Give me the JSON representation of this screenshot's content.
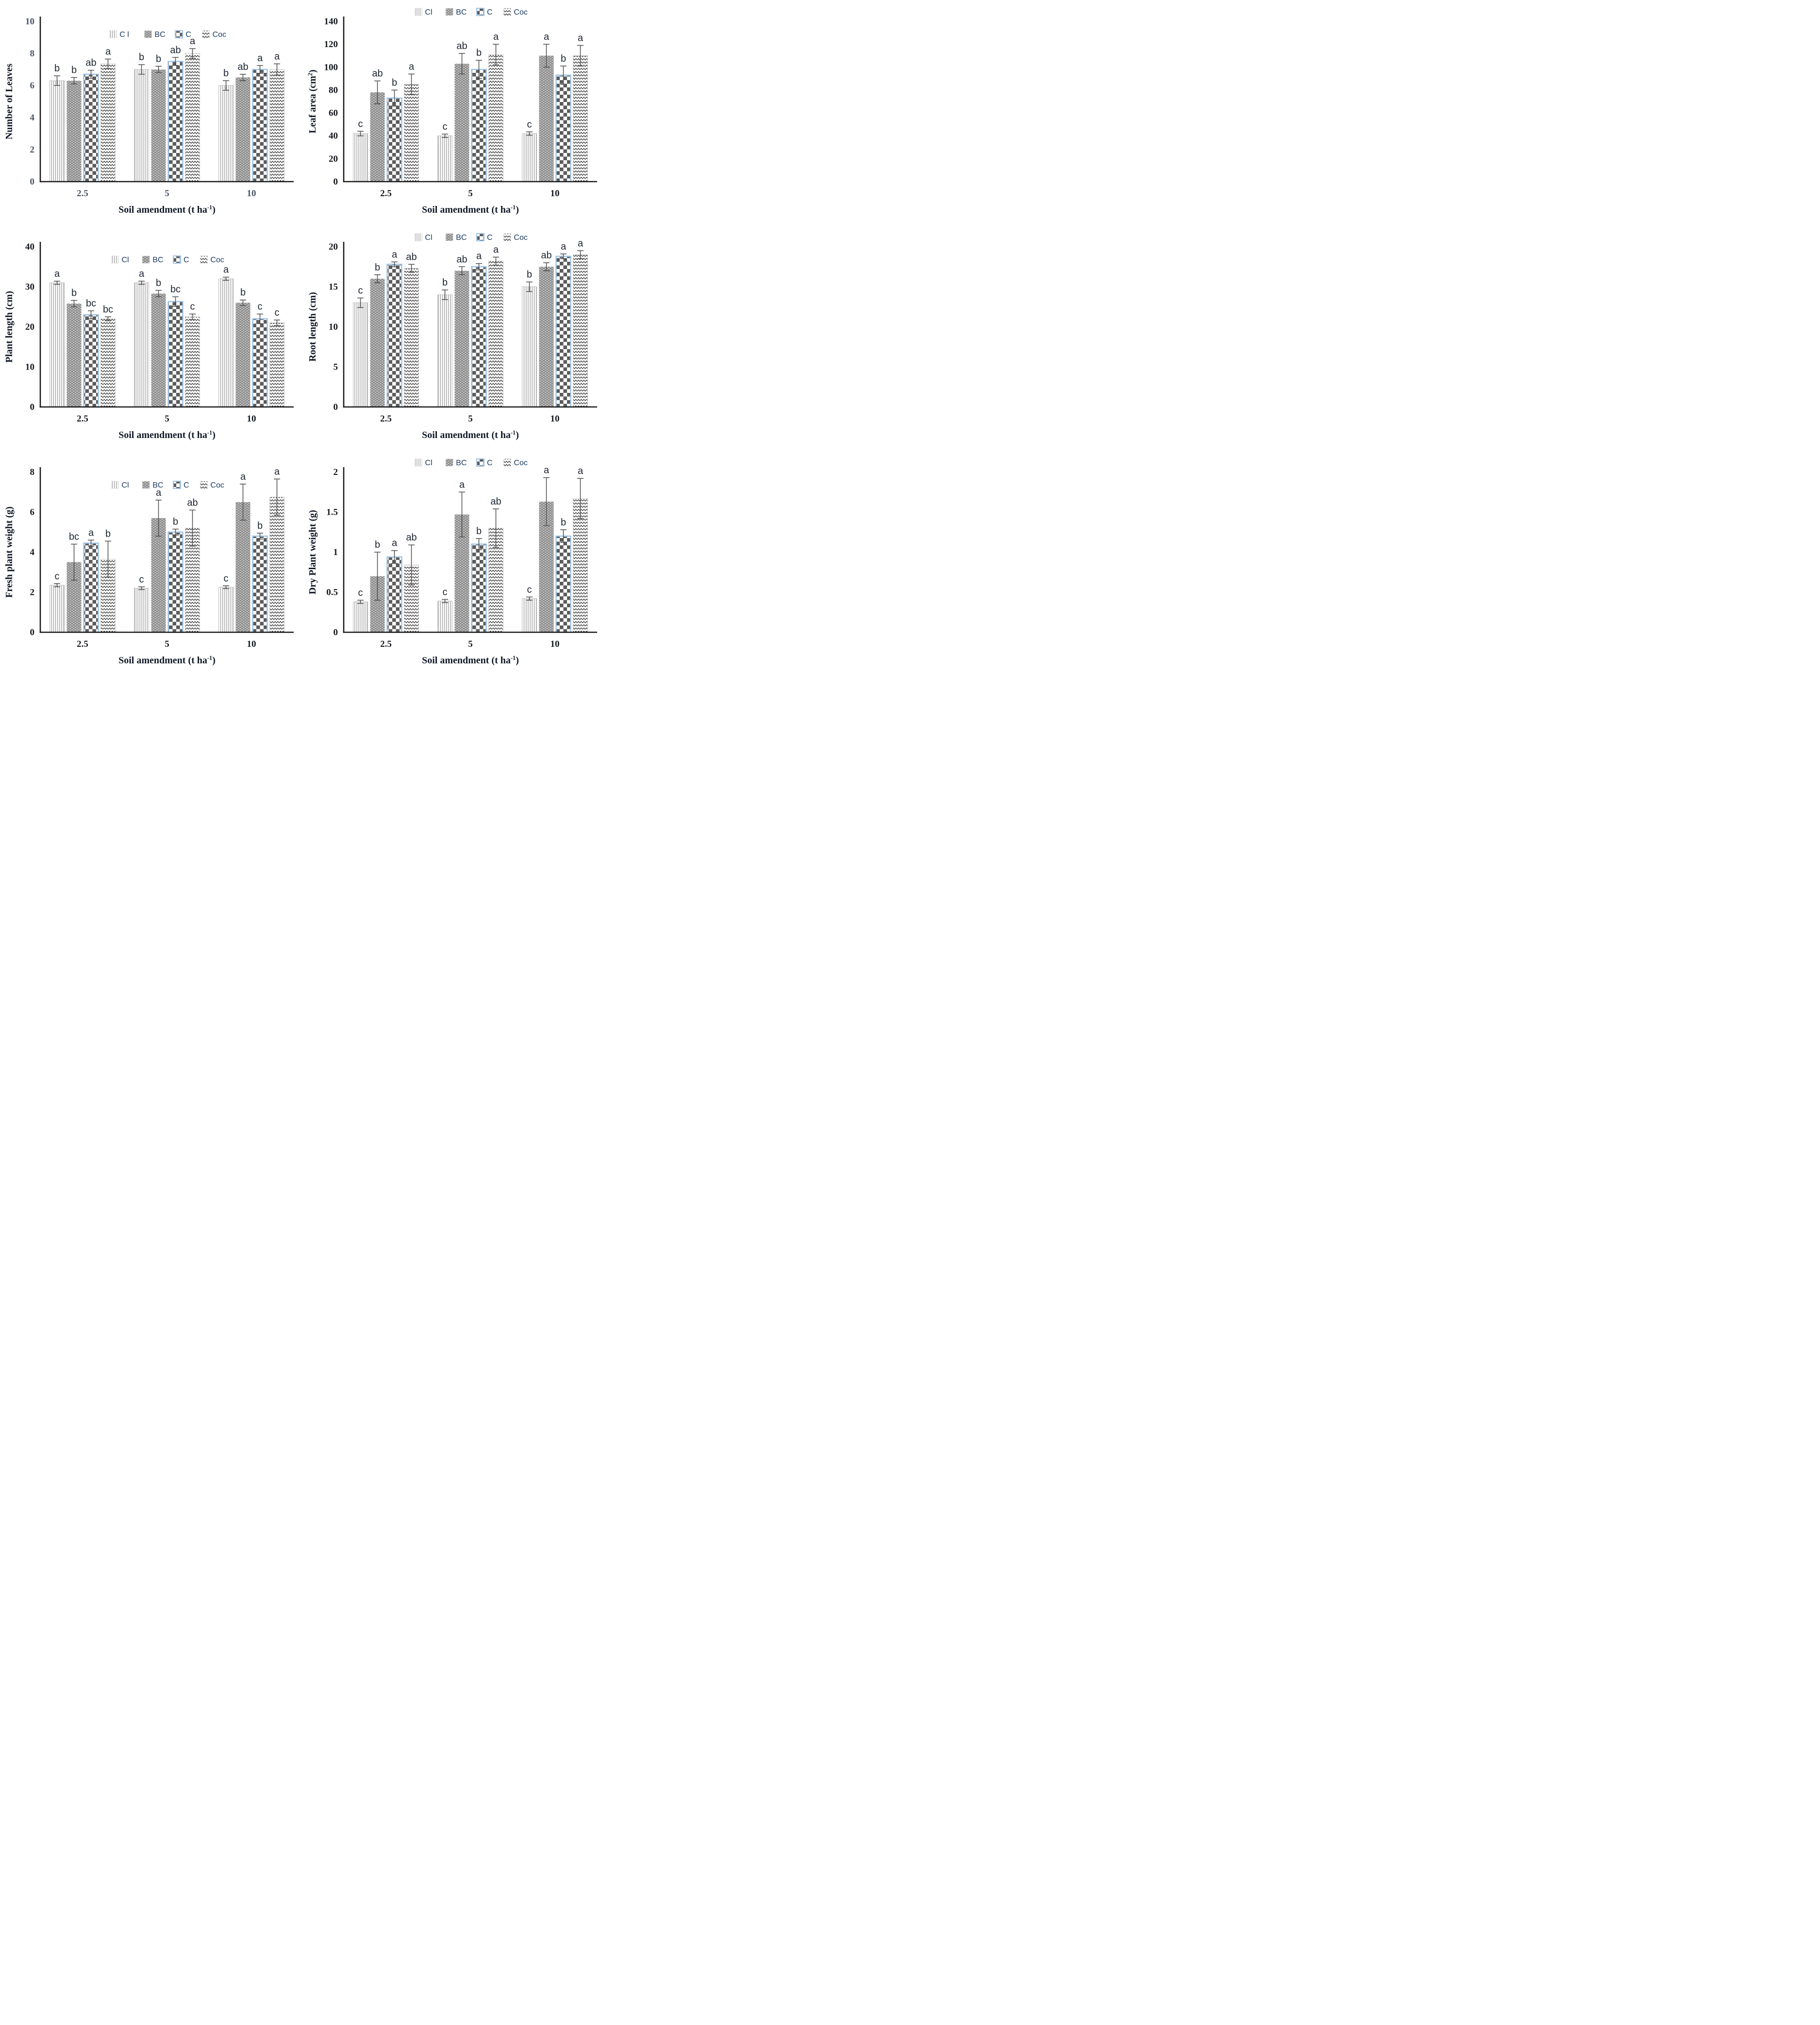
{
  "figure": {
    "description": "Six-panel grouped bar chart figure of plant growth responses to soil amendments",
    "rows": 3,
    "cols": 2,
    "background": "#ffffff"
  },
  "colors": {
    "axis": "#1a1a1a",
    "axis_label_text": "#101826",
    "letter_text": "#1c2430",
    "legend_text": "#17375e",
    "error_bar": "#4d4d4d",
    "stripe_gray": "#a8a8a8",
    "bar_gray": "#8f8f8f",
    "checker_dark": "#5b5b5b",
    "checker_border": "#9dc3e6",
    "zigzag_dark": "#141414",
    "tick_blue": "#4a5568",
    "tick_black": "#14181f"
  },
  "patterns": {
    "vlines": "vertical-lines-swatch",
    "bc": "dotted-grid-swatch",
    "checker": "checkerboard-swatch",
    "zigzag": "zigzag-waves-swatch"
  },
  "chart_data": [
    {
      "type": "bar",
      "name": "number-of-leaves",
      "ylabel": {
        "pre": "Number of Leaves",
        "sup": "",
        "post": ""
      },
      "xlabel": {
        "pre": "Soil amendment (t ha",
        "sup": "-1",
        "post": ")"
      },
      "ylim": [
        0,
        10
      ],
      "yticks": [
        0,
        2,
        4,
        6,
        8,
        10
      ],
      "categories": [
        "2.5",
        "5",
        "10"
      ],
      "legend_pos": "inside",
      "tick_color": "#4a5568",
      "series": [
        {
          "name": "Cl",
          "legend_label": "C l",
          "pattern": "vlines",
          "values": [
            6.3,
            7.0,
            6.0
          ],
          "errors": [
            0.3,
            0.3,
            0.3
          ],
          "letters": [
            "b",
            "b",
            "b"
          ]
        },
        {
          "name": "BC",
          "legend_label": "BC",
          "pattern": "bc",
          "values": [
            6.3,
            7.0,
            6.5
          ],
          "errors": [
            0.2,
            0.2,
            0.2
          ],
          "letters": [
            "b",
            "b",
            "ab"
          ]
        },
        {
          "name": "C",
          "legend_label": "C",
          "pattern": "checker",
          "values": [
            6.7,
            7.5,
            7.0
          ],
          "errors": [
            0.25,
            0.25,
            0.25
          ],
          "letters": [
            "ab",
            "ab",
            "a"
          ]
        },
        {
          "name": "Coc",
          "legend_label": "Coc",
          "pattern": "zigzag",
          "values": [
            7.35,
            8.0,
            7.0
          ],
          "errors": [
            0.3,
            0.3,
            0.35
          ],
          "letters": [
            "a",
            "a",
            "a"
          ]
        }
      ]
    },
    {
      "type": "bar",
      "name": "leaf-area",
      "ylabel": {
        "pre": "Leaf area (cm",
        "sup": "2",
        "post": ")"
      },
      "xlabel": {
        "pre": "Soil amendment (t ha",
        "sup": "-1",
        "post": ")"
      },
      "ylim": [
        0,
        140
      ],
      "yticks": [
        0,
        20,
        40,
        60,
        80,
        100,
        120,
        140
      ],
      "categories": [
        "2.5",
        "5",
        "10"
      ],
      "legend_pos": "outside",
      "tick_color": "#14181f",
      "series": [
        {
          "name": "Cl",
          "legend_label": "Cl",
          "pattern": "vlines",
          "values": [
            42,
            40,
            42
          ],
          "errors": [
            2,
            1.5,
            1.5
          ],
          "letters": [
            "c",
            "c",
            "c"
          ]
        },
        {
          "name": "BC",
          "legend_label": "BC",
          "pattern": "bc",
          "values": [
            78,
            103,
            110
          ],
          "errors": [
            10,
            9,
            10
          ],
          "letters": [
            "ab",
            "ab",
            "a"
          ]
        },
        {
          "name": "C",
          "legend_label": "C",
          "pattern": "checker",
          "values": [
            73,
            98,
            93
          ],
          "errors": [
            7,
            8,
            8
          ],
          "letters": [
            "b",
            "b",
            "b"
          ]
        },
        {
          "name": "Coc",
          "legend_label": "Coc",
          "pattern": "zigzag",
          "values": [
            85,
            111,
            110
          ],
          "errors": [
            9,
            9,
            9
          ],
          "letters": [
            "a",
            "a",
            "a"
          ]
        }
      ]
    },
    {
      "type": "bar",
      "name": "plant-length",
      "ylabel": {
        "pre": "Plant length (cm)",
        "sup": "",
        "post": ""
      },
      "xlabel": {
        "pre": "Soil amendment (t ha",
        "sup": "-1",
        "post": ")"
      },
      "ylim": [
        0,
        40
      ],
      "yticks": [
        0,
        10,
        20,
        30,
        40
      ],
      "categories": [
        "2.5",
        "5",
        "10"
      ],
      "legend_pos": "inside",
      "tick_color": "#14181f",
      "series": [
        {
          "name": "Cl",
          "legend_label": "Cl",
          "pattern": "vlines",
          "values": [
            31,
            31,
            32
          ],
          "errors": [
            0.4,
            0.4,
            0.4
          ],
          "letters": [
            "a",
            "a",
            "a"
          ]
        },
        {
          "name": "BC",
          "legend_label": "BC",
          "pattern": "bc",
          "values": [
            25.8,
            28.3,
            26
          ],
          "errors": [
            0.8,
            0.8,
            0.7
          ],
          "letters": [
            "b",
            "b",
            "b"
          ]
        },
        {
          "name": "C",
          "legend_label": "C",
          "pattern": "checker",
          "values": [
            23,
            26.3,
            22
          ],
          "errors": [
            1.0,
            1.2,
            1.2
          ],
          "letters": [
            "bc",
            "bc",
            "c"
          ]
        },
        {
          "name": "Coc",
          "legend_label": "Coc",
          "pattern": "zigzag",
          "values": [
            22,
            22.5,
            21
          ],
          "errors": [
            0.5,
            0.7,
            0.7
          ],
          "letters": [
            "bc",
            "c",
            "c"
          ]
        }
      ]
    },
    {
      "type": "bar",
      "name": "root-length",
      "ylabel": {
        "pre": "Root length (cm)",
        "sup": "",
        "post": ""
      },
      "xlabel": {
        "pre": "Soil amendment (t ha",
        "sup": "-1",
        "post": ")"
      },
      "ylim": [
        0,
        20
      ],
      "yticks": [
        0,
        5,
        10,
        15,
        20
      ],
      "categories": [
        "2.5",
        "5",
        "10"
      ],
      "legend_pos": "outside",
      "tick_color": "#14181f",
      "series": [
        {
          "name": "Cl",
          "legend_label": "Cl",
          "pattern": "vlines",
          "values": [
            13,
            14,
            15
          ],
          "errors": [
            0.6,
            0.6,
            0.6
          ],
          "letters": [
            "c",
            "b",
            "b"
          ]
        },
        {
          "name": "BC",
          "legend_label": "BC",
          "pattern": "bc",
          "values": [
            16,
            17,
            17.5
          ],
          "errors": [
            0.5,
            0.5,
            0.5
          ],
          "letters": [
            "b",
            "ab",
            "ab"
          ]
        },
        {
          "name": "C",
          "legend_label": "C",
          "pattern": "checker",
          "values": [
            17.8,
            17.5,
            18.8
          ],
          "errors": [
            0.3,
            0.4,
            0.3
          ],
          "letters": [
            "a",
            "a",
            "a"
          ]
        },
        {
          "name": "Coc",
          "legend_label": "Coc",
          "pattern": "zigzag",
          "values": [
            17.3,
            18.2,
            19
          ],
          "errors": [
            0.5,
            0.5,
            0.5
          ],
          "letters": [
            "ab",
            "a",
            "a"
          ]
        }
      ]
    },
    {
      "type": "bar",
      "name": "fresh-plant-weight",
      "ylabel": {
        "pre": "Fresh plant weight (g)",
        "sup": "",
        "post": ""
      },
      "xlabel": {
        "pre": "Soil amendment (t ha",
        "sup": "-1",
        "post": ")"
      },
      "ylim": [
        0,
        8
      ],
      "yticks": [
        0,
        2,
        4,
        6,
        8
      ],
      "categories": [
        "2.5",
        "5",
        "10"
      ],
      "legend_pos": "inside",
      "tick_color": "#14181f",
      "series": [
        {
          "name": "Cl",
          "legend_label": "Cl",
          "pattern": "vlines",
          "values": [
            2.35,
            2.2,
            2.25
          ],
          "errors": [
            0.08,
            0.07,
            0.07
          ],
          "letters": [
            "c",
            "c",
            "c"
          ]
        },
        {
          "name": "BC",
          "legend_label": "BC",
          "pattern": "bc",
          "values": [
            3.5,
            5.7,
            6.5
          ],
          "errors": [
            0.9,
            0.9,
            0.9
          ],
          "letters": [
            "bc",
            "a",
            "a"
          ]
        },
        {
          "name": "C",
          "legend_label": "C",
          "pattern": "checker",
          "values": [
            4.45,
            5.0,
            4.8
          ],
          "errors": [
            0.15,
            0.15,
            0.15
          ],
          "letters": [
            "a",
            "b",
            "b"
          ]
        },
        {
          "name": "Coc",
          "legend_label": "Coc",
          "pattern": "zigzag",
          "values": [
            3.65,
            5.2,
            6.75
          ],
          "errors": [
            0.9,
            0.9,
            0.9
          ],
          "letters": [
            "b",
            "ab",
            "a"
          ]
        }
      ]
    },
    {
      "type": "bar",
      "name": "dry-plant-weight",
      "ylabel": {
        "pre": "Dry Plant weight (g)",
        "sup": "",
        "post": ""
      },
      "xlabel": {
        "pre": "Soil amendment (t ha",
        "sup": "-1",
        "post": ")"
      },
      "ylim": [
        0,
        2
      ],
      "yticks": [
        0,
        0.5,
        1,
        1.5,
        2
      ],
      "categories": [
        "2.5",
        "5",
        "10"
      ],
      "legend_pos": "outside",
      "tick_color": "#14181f",
      "series": [
        {
          "name": "Cl",
          "legend_label": "Cl",
          "pattern": "vlines",
          "values": [
            0.38,
            0.39,
            0.42
          ],
          "errors": [
            0.02,
            0.02,
            0.02
          ],
          "letters": [
            "c",
            "c",
            "c"
          ]
        },
        {
          "name": "BC",
          "legend_label": "BC",
          "pattern": "bc",
          "values": [
            0.7,
            1.47,
            1.63
          ],
          "errors": [
            0.3,
            0.28,
            0.3
          ],
          "letters": [
            "b",
            "a",
            "a"
          ]
        },
        {
          "name": "C",
          "legend_label": "C",
          "pattern": "checker",
          "values": [
            0.94,
            1.1,
            1.2
          ],
          "errors": [
            0.08,
            0.07,
            0.08
          ],
          "letters": [
            "a",
            "b",
            "b"
          ]
        },
        {
          "name": "Coc",
          "legend_label": "Coc",
          "pattern": "zigzag",
          "values": [
            0.84,
            1.3,
            1.67
          ],
          "errors": [
            0.25,
            0.24,
            0.25
          ],
          "letters": [
            "ab",
            "ab",
            "a"
          ]
        }
      ]
    }
  ]
}
